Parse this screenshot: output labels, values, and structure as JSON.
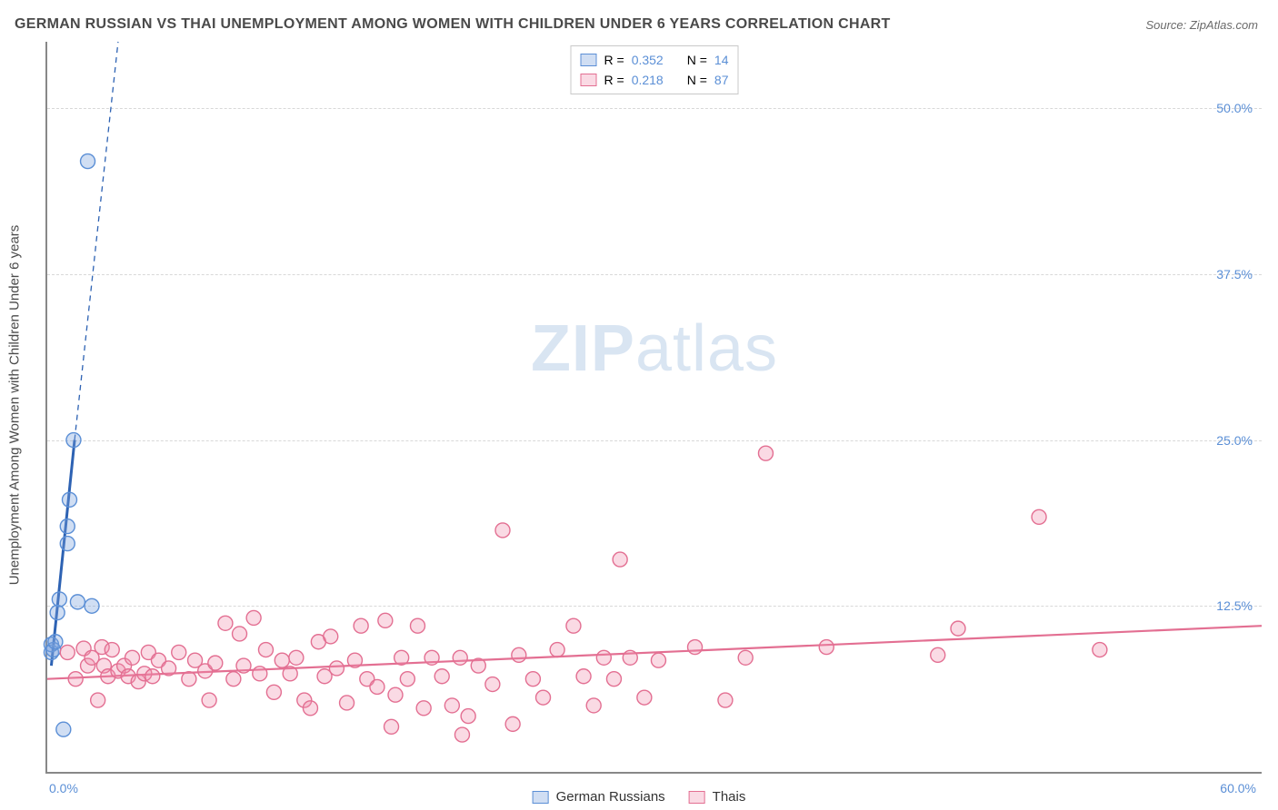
{
  "title": "GERMAN RUSSIAN VS THAI UNEMPLOYMENT AMONG WOMEN WITH CHILDREN UNDER 6 YEARS CORRELATION CHART",
  "source": "Source: ZipAtlas.com",
  "watermark_left": "ZIP",
  "watermark_right": "atlas",
  "y_axis_title": "Unemployment Among Women with Children Under 6 years",
  "chart": {
    "type": "scatter",
    "background_color": "#ffffff",
    "grid_color": "#d8d8d8",
    "axis_color": "#888888",
    "xlim": [
      0,
      60
    ],
    "ylim": [
      0,
      55
    ],
    "y_ticks": [
      {
        "value": 12.5,
        "label": "12.5%"
      },
      {
        "value": 25.0,
        "label": "25.0%"
      },
      {
        "value": 37.5,
        "label": "37.5%"
      },
      {
        "value": 50.0,
        "label": "50.0%"
      }
    ],
    "x_zero_label": "0.0%",
    "x_max_label": "60.0%",
    "marker_radius": 8,
    "marker_stroke_width": 1.4,
    "series": [
      {
        "key": "german_russians",
        "label": "German Russians",
        "fill": "rgba(120,160,220,0.35)",
        "stroke": "#5b8fd6",
        "R": "0.352",
        "N": "14",
        "points": [
          [
            0.2,
            9.0
          ],
          [
            0.2,
            9.6
          ],
          [
            0.3,
            9.2
          ],
          [
            0.4,
            9.8
          ],
          [
            0.5,
            12.0
          ],
          [
            0.6,
            13.0
          ],
          [
            1.0,
            17.2
          ],
          [
            1.0,
            18.5
          ],
          [
            1.1,
            20.5
          ],
          [
            1.3,
            25.0
          ],
          [
            1.5,
            12.8
          ],
          [
            2.0,
            46.0
          ],
          [
            2.2,
            12.5
          ],
          [
            0.8,
            3.2
          ]
        ],
        "trend": {
          "x1": 0.2,
          "y1": 8.0,
          "x2": 1.35,
          "y2": 25.0,
          "color": "#2d62b3",
          "width": 3
        },
        "trend_ext": {
          "x1": 1.35,
          "y1": 25.0,
          "x2": 3.5,
          "y2": 55.0,
          "color": "#2d62b3",
          "dash": "6,5",
          "width": 1.3
        }
      },
      {
        "key": "thais",
        "label": "Thais",
        "fill": "rgba(240,140,170,0.32)",
        "stroke": "#e36f92",
        "R": "0.218",
        "N": "87",
        "points": [
          [
            1.0,
            9.0
          ],
          [
            1.4,
            7.0
          ],
          [
            1.8,
            9.3
          ],
          [
            2.0,
            8.0
          ],
          [
            2.2,
            8.6
          ],
          [
            2.5,
            5.4
          ],
          [
            2.7,
            9.4
          ],
          [
            2.8,
            8.0
          ],
          [
            3.0,
            7.2
          ],
          [
            3.2,
            9.2
          ],
          [
            3.5,
            7.6
          ],
          [
            3.8,
            8.0
          ],
          [
            4.0,
            7.2
          ],
          [
            4.2,
            8.6
          ],
          [
            4.5,
            6.8
          ],
          [
            4.8,
            7.4
          ],
          [
            5.0,
            9.0
          ],
          [
            5.2,
            7.2
          ],
          [
            5.5,
            8.4
          ],
          [
            6.0,
            7.8
          ],
          [
            6.5,
            9.0
          ],
          [
            7.0,
            7.0
          ],
          [
            7.3,
            8.4
          ],
          [
            7.8,
            7.6
          ],
          [
            8.0,
            5.4
          ],
          [
            8.3,
            8.2
          ],
          [
            8.8,
            11.2
          ],
          [
            9.2,
            7.0
          ],
          [
            9.5,
            10.4
          ],
          [
            9.7,
            8.0
          ],
          [
            10.2,
            11.6
          ],
          [
            10.5,
            7.4
          ],
          [
            10.8,
            9.2
          ],
          [
            11.2,
            6.0
          ],
          [
            11.6,
            8.4
          ],
          [
            12.0,
            7.4
          ],
          [
            12.3,
            8.6
          ],
          [
            12.7,
            5.4
          ],
          [
            13.0,
            4.8
          ],
          [
            13.4,
            9.8
          ],
          [
            13.7,
            7.2
          ],
          [
            14.0,
            10.2
          ],
          [
            14.3,
            7.8
          ],
          [
            14.8,
            5.2
          ],
          [
            15.2,
            8.4
          ],
          [
            15.5,
            11.0
          ],
          [
            15.8,
            7.0
          ],
          [
            16.3,
            6.4
          ],
          [
            16.7,
            11.4
          ],
          [
            17.2,
            5.8
          ],
          [
            17.5,
            8.6
          ],
          [
            17.8,
            7.0
          ],
          [
            18.3,
            11.0
          ],
          [
            18.6,
            4.8
          ],
          [
            19.0,
            8.6
          ],
          [
            19.5,
            7.2
          ],
          [
            20.0,
            5.0
          ],
          [
            20.4,
            8.6
          ],
          [
            20.8,
            4.2
          ],
          [
            21.3,
            8.0
          ],
          [
            22.0,
            6.6
          ],
          [
            22.5,
            18.2
          ],
          [
            23.0,
            3.6
          ],
          [
            23.3,
            8.8
          ],
          [
            24.0,
            7.0
          ],
          [
            24.5,
            5.6
          ],
          [
            25.2,
            9.2
          ],
          [
            26.0,
            11.0
          ],
          [
            26.5,
            7.2
          ],
          [
            27.0,
            5.0
          ],
          [
            27.5,
            8.6
          ],
          [
            28.0,
            7.0
          ],
          [
            28.3,
            16.0
          ],
          [
            28.8,
            8.6
          ],
          [
            29.5,
            5.6
          ],
          [
            30.2,
            8.4
          ],
          [
            32.0,
            9.4
          ],
          [
            33.5,
            5.4
          ],
          [
            34.5,
            8.6
          ],
          [
            35.5,
            24.0
          ],
          [
            38.5,
            9.4
          ],
          [
            44.0,
            8.8
          ],
          [
            45.0,
            10.8
          ],
          [
            49.0,
            19.2
          ],
          [
            52.0,
            9.2
          ],
          [
            20.5,
            2.8
          ],
          [
            17.0,
            3.4
          ]
        ],
        "trend": {
          "x1": 0,
          "y1": 7.0,
          "x2": 60,
          "y2": 11.0,
          "color": "#e36f92",
          "width": 2.2
        }
      }
    ]
  },
  "legend_top": {
    "R_label": "R =",
    "N_label": "N ="
  }
}
